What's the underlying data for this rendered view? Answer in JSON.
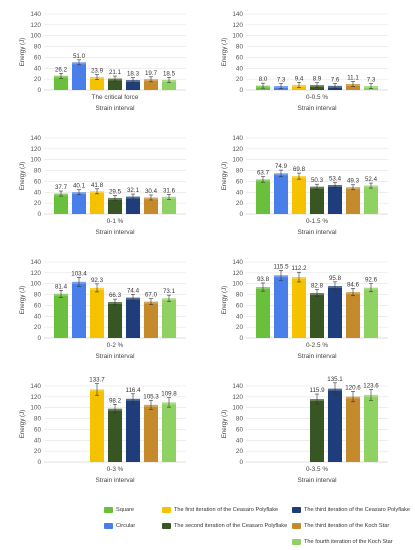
{
  "colors": {
    "square": "#6abf3c",
    "circular": "#4a7ee8",
    "ceasaro1": "#f5c200",
    "ceasaro2": "#375623",
    "ceasaro3": "#1f3d7a",
    "koch3": "#c48a2c",
    "koch4": "#8fd162"
  },
  "legend": [
    {
      "key": "square",
      "label": "Square"
    },
    {
      "key": "circular",
      "label": "Circular"
    },
    {
      "key": "ceasaro1",
      "label": "The first iteration of the Ceasaro Polyflake"
    },
    {
      "key": "ceasaro2",
      "label": "The second iteration of the Ceasaro Polyflake"
    },
    {
      "key": "ceasaro3",
      "label": "The third iteration of the Ceasaro Polyflake"
    },
    {
      "key": "koch3",
      "label": "The third iteration of the Koch Star"
    },
    {
      "key": "koch4",
      "label": "The fourth iteration of the Koch Star"
    }
  ],
  "chart_data": [
    {
      "type": "bar",
      "category": "The critical force",
      "xlabel": "Strain interval",
      "ylabel": "Energy (J)",
      "ylim": [
        0,
        140
      ],
      "yticks": [
        0,
        20,
        40,
        60,
        80,
        100,
        120,
        140
      ],
      "grid": true,
      "series": [
        {
          "key": "square",
          "value": 26.2,
          "label": "26.2"
        },
        {
          "key": "circular",
          "value": 51.0,
          "label": "51.0"
        },
        {
          "key": "ceasaro1",
          "value": 23.9,
          "label": "23.9"
        },
        {
          "key": "ceasaro2",
          "value": 21.1,
          "label": "21.1"
        },
        {
          "key": "ceasaro3",
          "value": 18.3,
          "label": "18.3"
        },
        {
          "key": "koch3",
          "value": 19.7,
          "label": "19.7"
        },
        {
          "key": "koch4",
          "value": 18.5,
          "label": "18.5"
        }
      ]
    },
    {
      "type": "bar",
      "category": "0-0.5 %",
      "xlabel": "Strain interval",
      "ylabel": "Energy (J)",
      "ylim": [
        0,
        140
      ],
      "yticks": [
        0,
        20,
        40,
        60,
        80,
        100,
        120,
        140
      ],
      "grid": true,
      "series": [
        {
          "key": "square",
          "value": 8.0,
          "label": "8.0"
        },
        {
          "key": "circular",
          "value": 7.3,
          "label": "7.3"
        },
        {
          "key": "ceasaro1",
          "value": 9.4,
          "label": "9.4"
        },
        {
          "key": "ceasaro2",
          "value": 8.9,
          "label": "8.9"
        },
        {
          "key": "ceasaro3",
          "value": 7.6,
          "label": "7.6"
        },
        {
          "key": "koch3",
          "value": 11.1,
          "label": "11.1"
        },
        {
          "key": "koch4",
          "value": 7.3,
          "label": "7.3"
        }
      ]
    },
    {
      "type": "bar",
      "category": "0-1 %",
      "xlabel": "Strain interval",
      "ylabel": "Energy (J)",
      "ylim": [
        0,
        140
      ],
      "yticks": [
        0,
        20,
        40,
        60,
        80,
        100,
        120,
        140
      ],
      "grid": true,
      "series": [
        {
          "key": "square",
          "value": 37.7,
          "label": "37.7"
        },
        {
          "key": "circular",
          "value": 40.1,
          "label": "40.1"
        },
        {
          "key": "ceasaro1",
          "value": 41.8,
          "label": "41.8"
        },
        {
          "key": "ceasaro2",
          "value": 29.5,
          "label": "29.5"
        },
        {
          "key": "ceasaro3",
          "value": 32.1,
          "label": "32.1"
        },
        {
          "key": "koch3",
          "value": 30.4,
          "label": "30.4"
        },
        {
          "key": "koch4",
          "value": 31.6,
          "label": "31.6"
        }
      ]
    },
    {
      "type": "bar",
      "category": "0-1.5 %",
      "xlabel": "Strain interval",
      "ylabel": "Energy (J)",
      "ylim": [
        0,
        140
      ],
      "yticks": [
        0,
        20,
        40,
        60,
        80,
        100,
        120,
        140
      ],
      "grid": true,
      "series": [
        {
          "key": "square",
          "value": 63.7,
          "label": "63.7"
        },
        {
          "key": "circular",
          "value": 74.9,
          "label": "74.9"
        },
        {
          "key": "ceasaro1",
          "value": 69.8,
          "label": "69.8"
        },
        {
          "key": "ceasaro2",
          "value": 50.3,
          "label": "50.3"
        },
        {
          "key": "ceasaro3",
          "value": 53.4,
          "label": "53.4"
        },
        {
          "key": "koch3",
          "value": 49.3,
          "label": "49.3"
        },
        {
          "key": "koch4",
          "value": 52.4,
          "label": "52.4"
        }
      ]
    },
    {
      "type": "bar",
      "category": "0-2 %",
      "xlabel": "Strain interval",
      "ylabel": "Energy (J)",
      "ylim": [
        0,
        140
      ],
      "yticks": [
        0,
        20,
        40,
        60,
        80,
        100,
        120,
        140
      ],
      "grid": true,
      "series": [
        {
          "key": "square",
          "value": 81.4,
          "label": "81.4"
        },
        {
          "key": "circular",
          "value": 103.4,
          "label": "103.4"
        },
        {
          "key": "ceasaro1",
          "value": 92.3,
          "label": "92.3"
        },
        {
          "key": "ceasaro2",
          "value": 66.3,
          "label": "66.3"
        },
        {
          "key": "ceasaro3",
          "value": 74.4,
          "label": "74.4"
        },
        {
          "key": "koch3",
          "value": 67.0,
          "label": "67.0"
        },
        {
          "key": "koch4",
          "value": 73.1,
          "label": "73.1"
        }
      ]
    },
    {
      "type": "bar",
      "category": "0-2.5 %",
      "xlabel": "Strain interval",
      "ylabel": "Energy (J)",
      "ylim": [
        0,
        140
      ],
      "yticks": [
        0,
        20,
        40,
        60,
        80,
        100,
        120,
        140
      ],
      "grid": true,
      "series": [
        {
          "key": "square",
          "value": 93.8,
          "label": "93.8"
        },
        {
          "key": "circular",
          "value": 115.5,
          "label": "115.5"
        },
        {
          "key": "ceasaro1",
          "value": 112.2,
          "label": "112.2"
        },
        {
          "key": "ceasaro2",
          "value": 82.8,
          "label": "82.8"
        },
        {
          "key": "ceasaro3",
          "value": 95.8,
          "label": "95.8"
        },
        {
          "key": "koch3",
          "value": 84.6,
          "label": "84.6"
        },
        {
          "key": "koch4",
          "value": 92.6,
          "label": "92.6"
        }
      ]
    },
    {
      "type": "bar",
      "category": "0-3 %",
      "xlabel": "Strain interval",
      "ylabel": "Energy (J)",
      "ylim": [
        0,
        140
      ],
      "yticks": [
        0,
        20,
        40,
        60,
        80,
        100,
        120,
        140
      ],
      "grid": true,
      "series": [
        {
          "key": "ceasaro1",
          "value": 133.7,
          "label": "133.7"
        },
        {
          "key": "ceasaro2",
          "value": 98.2,
          "label": "98.2"
        },
        {
          "key": "ceasaro3",
          "value": 116.4,
          "label": "116.4"
        },
        {
          "key": "koch3",
          "value": 105.3,
          "label": "105.3"
        },
        {
          "key": "koch4",
          "value": 109.8,
          "label": "109.8"
        }
      ]
    },
    {
      "type": "bar",
      "category": "0-3.5 %",
      "xlabel": "Strain interval",
      "ylabel": "Energy (J)",
      "ylim": [
        0,
        140
      ],
      "yticks": [
        0,
        20,
        40,
        60,
        80,
        100,
        120,
        140
      ],
      "grid": true,
      "series": [
        {
          "key": "ceasaro2",
          "value": 115.9,
          "label": "115.9"
        },
        {
          "key": "ceasaro3",
          "value": 135.1,
          "label": "135.1"
        },
        {
          "key": "koch3",
          "value": 120.6,
          "label": "120.6"
        },
        {
          "key": "koch4",
          "value": 123.6,
          "label": "123.6"
        }
      ]
    }
  ]
}
